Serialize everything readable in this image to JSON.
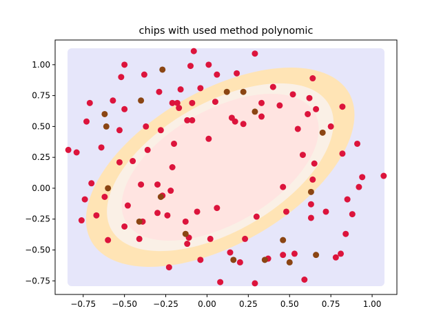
{
  "chart_data": {
    "type": "scatter",
    "title": "chips with used method polynomic",
    "xlim": [
      -0.92,
      1.15
    ],
    "ylim": [
      -0.86,
      1.2
    ],
    "xticks": [
      -0.75,
      -0.5,
      -0.25,
      0.0,
      0.25,
      0.5,
      0.75,
      1.0
    ],
    "xtick_labels": [
      "−0.75",
      "−0.50",
      "−0.25",
      "0.00",
      "0.25",
      "0.50",
      "0.75",
      "1.00"
    ],
    "yticks": [
      -0.75,
      -0.5,
      -0.25,
      0.0,
      0.25,
      0.5,
      0.75,
      1.0
    ],
    "ytick_labels": [
      "−0.75",
      "−0.50",
      "−0.25",
      "0.00",
      "0.25",
      "0.50",
      "0.75",
      "1.00"
    ],
    "colors": {
      "background_region": "#e6e6fa",
      "outer_band": "#ffe4b5",
      "middle_band": "#faf0e6",
      "inner_region": "#ffe4e1",
      "class_crimson": "#dc143c",
      "class_brown": "#8b4513"
    },
    "decision_regions": {
      "shape": "tilted-ellipse",
      "center": [
        0.08,
        0.17
      ],
      "rotation_deg": -30,
      "bands": [
        {
          "name": "outer",
          "rx": 0.9,
          "ry": 0.62
        },
        {
          "name": "middle",
          "rx": 0.76,
          "ry": 0.52
        },
        {
          "name": "inner",
          "rx": 0.66,
          "ry": 0.46
        }
      ]
    },
    "series": [
      {
        "color": "#dc143c",
        "points": [
          [
            -0.84,
            0.31
          ],
          [
            -0.79,
            0.29
          ],
          [
            -0.76,
            -0.26
          ],
          [
            -0.74,
            -0.09
          ],
          [
            -0.73,
            0.54
          ],
          [
            -0.71,
            0.69
          ],
          [
            -0.7,
            0.04
          ],
          [
            -0.67,
            -0.22
          ],
          [
            -0.64,
            0.33
          ],
          [
            -0.62,
            -0.07
          ],
          [
            -0.6,
            -0.42
          ],
          [
            -0.57,
            0.71
          ],
          [
            -0.53,
            0.47
          ],
          [
            -0.53,
            0.21
          ],
          [
            -0.52,
            0.9
          ],
          [
            -0.5,
            1.0
          ],
          [
            -0.5,
            0.64
          ],
          [
            -0.5,
            -0.31
          ],
          [
            -0.48,
            -0.14
          ],
          [
            -0.45,
            0.22
          ],
          [
            -0.41,
            -0.41
          ],
          [
            -0.4,
            0.03
          ],
          [
            -0.39,
            -0.27
          ],
          [
            -0.38,
            0.92
          ],
          [
            -0.37,
            0.5
          ],
          [
            -0.36,
            0.31
          ],
          [
            -0.3,
            -0.2
          ],
          [
            -0.3,
            0.03
          ],
          [
            -0.29,
            0.78
          ],
          [
            -0.28,
            0.47
          ],
          [
            -0.27,
            -0.06
          ],
          [
            -0.24,
            -0.22
          ],
          [
            -0.23,
            -0.64
          ],
          [
            -0.22,
            -0.02
          ],
          [
            -0.21,
            0.17
          ],
          [
            -0.2,
            0.36
          ],
          [
            -0.21,
            0.69
          ],
          [
            -0.18,
            0.69
          ],
          [
            -0.17,
            0.65
          ],
          [
            -0.16,
            0.8
          ],
          [
            -0.13,
            -0.27
          ],
          [
            -0.12,
            -0.45
          ],
          [
            -0.12,
            0.55
          ],
          [
            -0.11,
            -0.4
          ],
          [
            -0.1,
            0.99
          ],
          [
            -0.09,
            0.55
          ],
          [
            -0.09,
            0.69
          ],
          [
            -0.08,
            1.11
          ],
          [
            -0.06,
            -0.19
          ],
          [
            -0.04,
            0.81
          ],
          [
            -0.04,
            -0.58
          ],
          [
            0.01,
            1.0
          ],
          [
            0.01,
            0.4
          ],
          [
            0.02,
            -0.41
          ],
          [
            0.05,
            0.7
          ],
          [
            0.06,
            -0.16
          ],
          [
            0.06,
            0.92
          ],
          [
            0.08,
            -0.76
          ],
          [
            0.14,
            -0.52
          ],
          [
            0.15,
            0.57
          ],
          [
            0.17,
            0.54
          ],
          [
            0.18,
            0.93
          ],
          [
            0.2,
            -0.6
          ],
          [
            0.22,
            0.52
          ],
          [
            0.23,
            -0.41
          ],
          [
            0.29,
            1.09
          ],
          [
            0.29,
            -0.77
          ],
          [
            0.3,
            -0.23
          ],
          [
            0.33,
            0.58
          ],
          [
            0.33,
            0.69
          ],
          [
            0.37,
            -0.57
          ],
          [
            0.4,
            0.82
          ],
          [
            0.44,
            0.67
          ],
          [
            0.46,
            -0.54
          ],
          [
            0.46,
            0.01
          ],
          [
            0.48,
            -0.19
          ],
          [
            0.52,
            0.76
          ],
          [
            0.53,
            -0.53
          ],
          [
            0.55,
            0.48
          ],
          [
            0.58,
            0.27
          ],
          [
            0.59,
            -0.74
          ],
          [
            0.61,
            0.6
          ],
          [
            0.62,
            0.73
          ],
          [
            0.63,
            -0.13
          ],
          [
            0.63,
            -0.24
          ],
          [
            0.64,
            0.89
          ],
          [
            0.64,
            0.07
          ],
          [
            0.65,
            0.2
          ],
          [
            0.66,
            0.64
          ],
          [
            0.72,
            -0.19
          ],
          [
            0.75,
            0.5
          ],
          [
            0.78,
            -0.56
          ],
          [
            0.81,
            -0.53
          ],
          [
            0.82,
            0.66
          ],
          [
            0.82,
            0.28
          ],
          [
            0.84,
            -0.37
          ],
          [
            0.85,
            -0.09
          ],
          [
            0.88,
            -0.21
          ],
          [
            0.91,
            0.36
          ],
          [
            0.92,
            0.01
          ],
          [
            0.94,
            0.09
          ],
          [
            1.07,
            0.1
          ]
        ]
      },
      {
        "color": "#8b4513",
        "points": [
          [
            -0.62,
            0.6
          ],
          [
            -0.61,
            0.5
          ],
          [
            -0.6,
            0.0
          ],
          [
            -0.41,
            -0.27
          ],
          [
            -0.4,
            0.71
          ],
          [
            -0.28,
            -0.07
          ],
          [
            -0.27,
            0.96
          ],
          [
            -0.13,
            -0.37
          ],
          [
            0.12,
            0.78
          ],
          [
            0.22,
            0.78
          ],
          [
            0.29,
            0.62
          ],
          [
            0.35,
            -0.58
          ],
          [
            0.16,
            -0.58
          ],
          [
            0.46,
            -0.42
          ],
          [
            0.5,
            -0.6
          ],
          [
            0.63,
            -0.03
          ],
          [
            0.66,
            -0.54
          ],
          [
            0.7,
            0.45
          ]
        ]
      }
    ]
  }
}
